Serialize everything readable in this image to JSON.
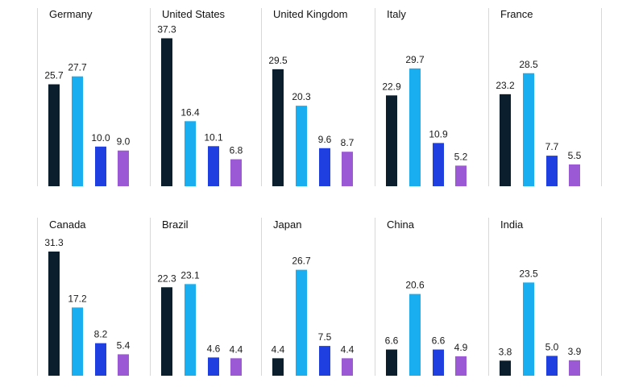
{
  "chart_data": [
    {
      "type": "bar",
      "title": "Germany",
      "values": [
        25.7,
        27.7,
        10.0,
        9.0
      ]
    },
    {
      "type": "bar",
      "title": "United States",
      "values": [
        37.3,
        16.4,
        10.1,
        6.8
      ]
    },
    {
      "type": "bar",
      "title": "United Kingdom",
      "values": [
        29.5,
        20.3,
        9.6,
        8.7
      ]
    },
    {
      "type": "bar",
      "title": "Italy",
      "values": [
        22.9,
        29.7,
        10.9,
        5.2
      ]
    },
    {
      "type": "bar",
      "title": "France",
      "values": [
        23.2,
        28.5,
        7.7,
        5.5
      ]
    },
    {
      "type": "bar",
      "title": "Canada",
      "values": [
        31.3,
        17.2,
        8.2,
        5.4
      ]
    },
    {
      "type": "bar",
      "title": "Brazil",
      "values": [
        22.3,
        23.1,
        4.6,
        4.4
      ]
    },
    {
      "type": "bar",
      "title": "Japan",
      "values": [
        4.4,
        26.7,
        7.5,
        4.4
      ]
    },
    {
      "type": "bar",
      "title": "China",
      "values": [
        6.6,
        20.6,
        6.6,
        4.9
      ]
    },
    {
      "type": "bar",
      "title": "India",
      "values": [
        3.8,
        23.5,
        5.0,
        3.9
      ]
    }
  ],
  "series_colors": [
    "#0b1e2d",
    "#19aef0",
    "#1f3fe0",
    "#9b59d6"
  ],
  "value_format": "one-decimal",
  "grid": false
}
